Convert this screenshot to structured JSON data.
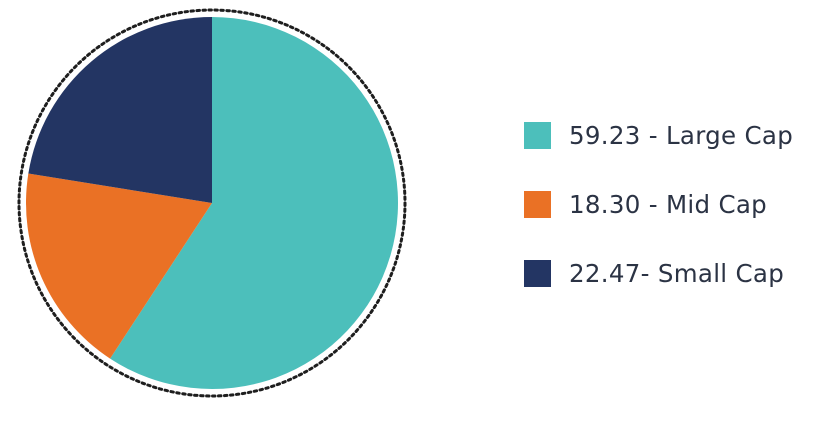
{
  "chart_data": {
    "type": "pie",
    "slices": [
      {
        "label": "59.23 - Large Cap",
        "value": 59.23,
        "color": "#4cbfbb"
      },
      {
        "label": "18.30 - Mid Cap",
        "value": 18.3,
        "color": "#ea7125"
      },
      {
        "label": "22.47- Small Cap",
        "value": 22.47,
        "color": "#233563"
      }
    ],
    "legend": "right",
    "border": "dotted"
  },
  "legend": {
    "items": [
      {
        "label": "59.23 - Large Cap",
        "color": "#4cbfbb"
      },
      {
        "label": "18.30 - Mid Cap",
        "color": "#ea7125"
      },
      {
        "label": "22.47- Small Cap",
        "color": "#233563"
      }
    ]
  }
}
